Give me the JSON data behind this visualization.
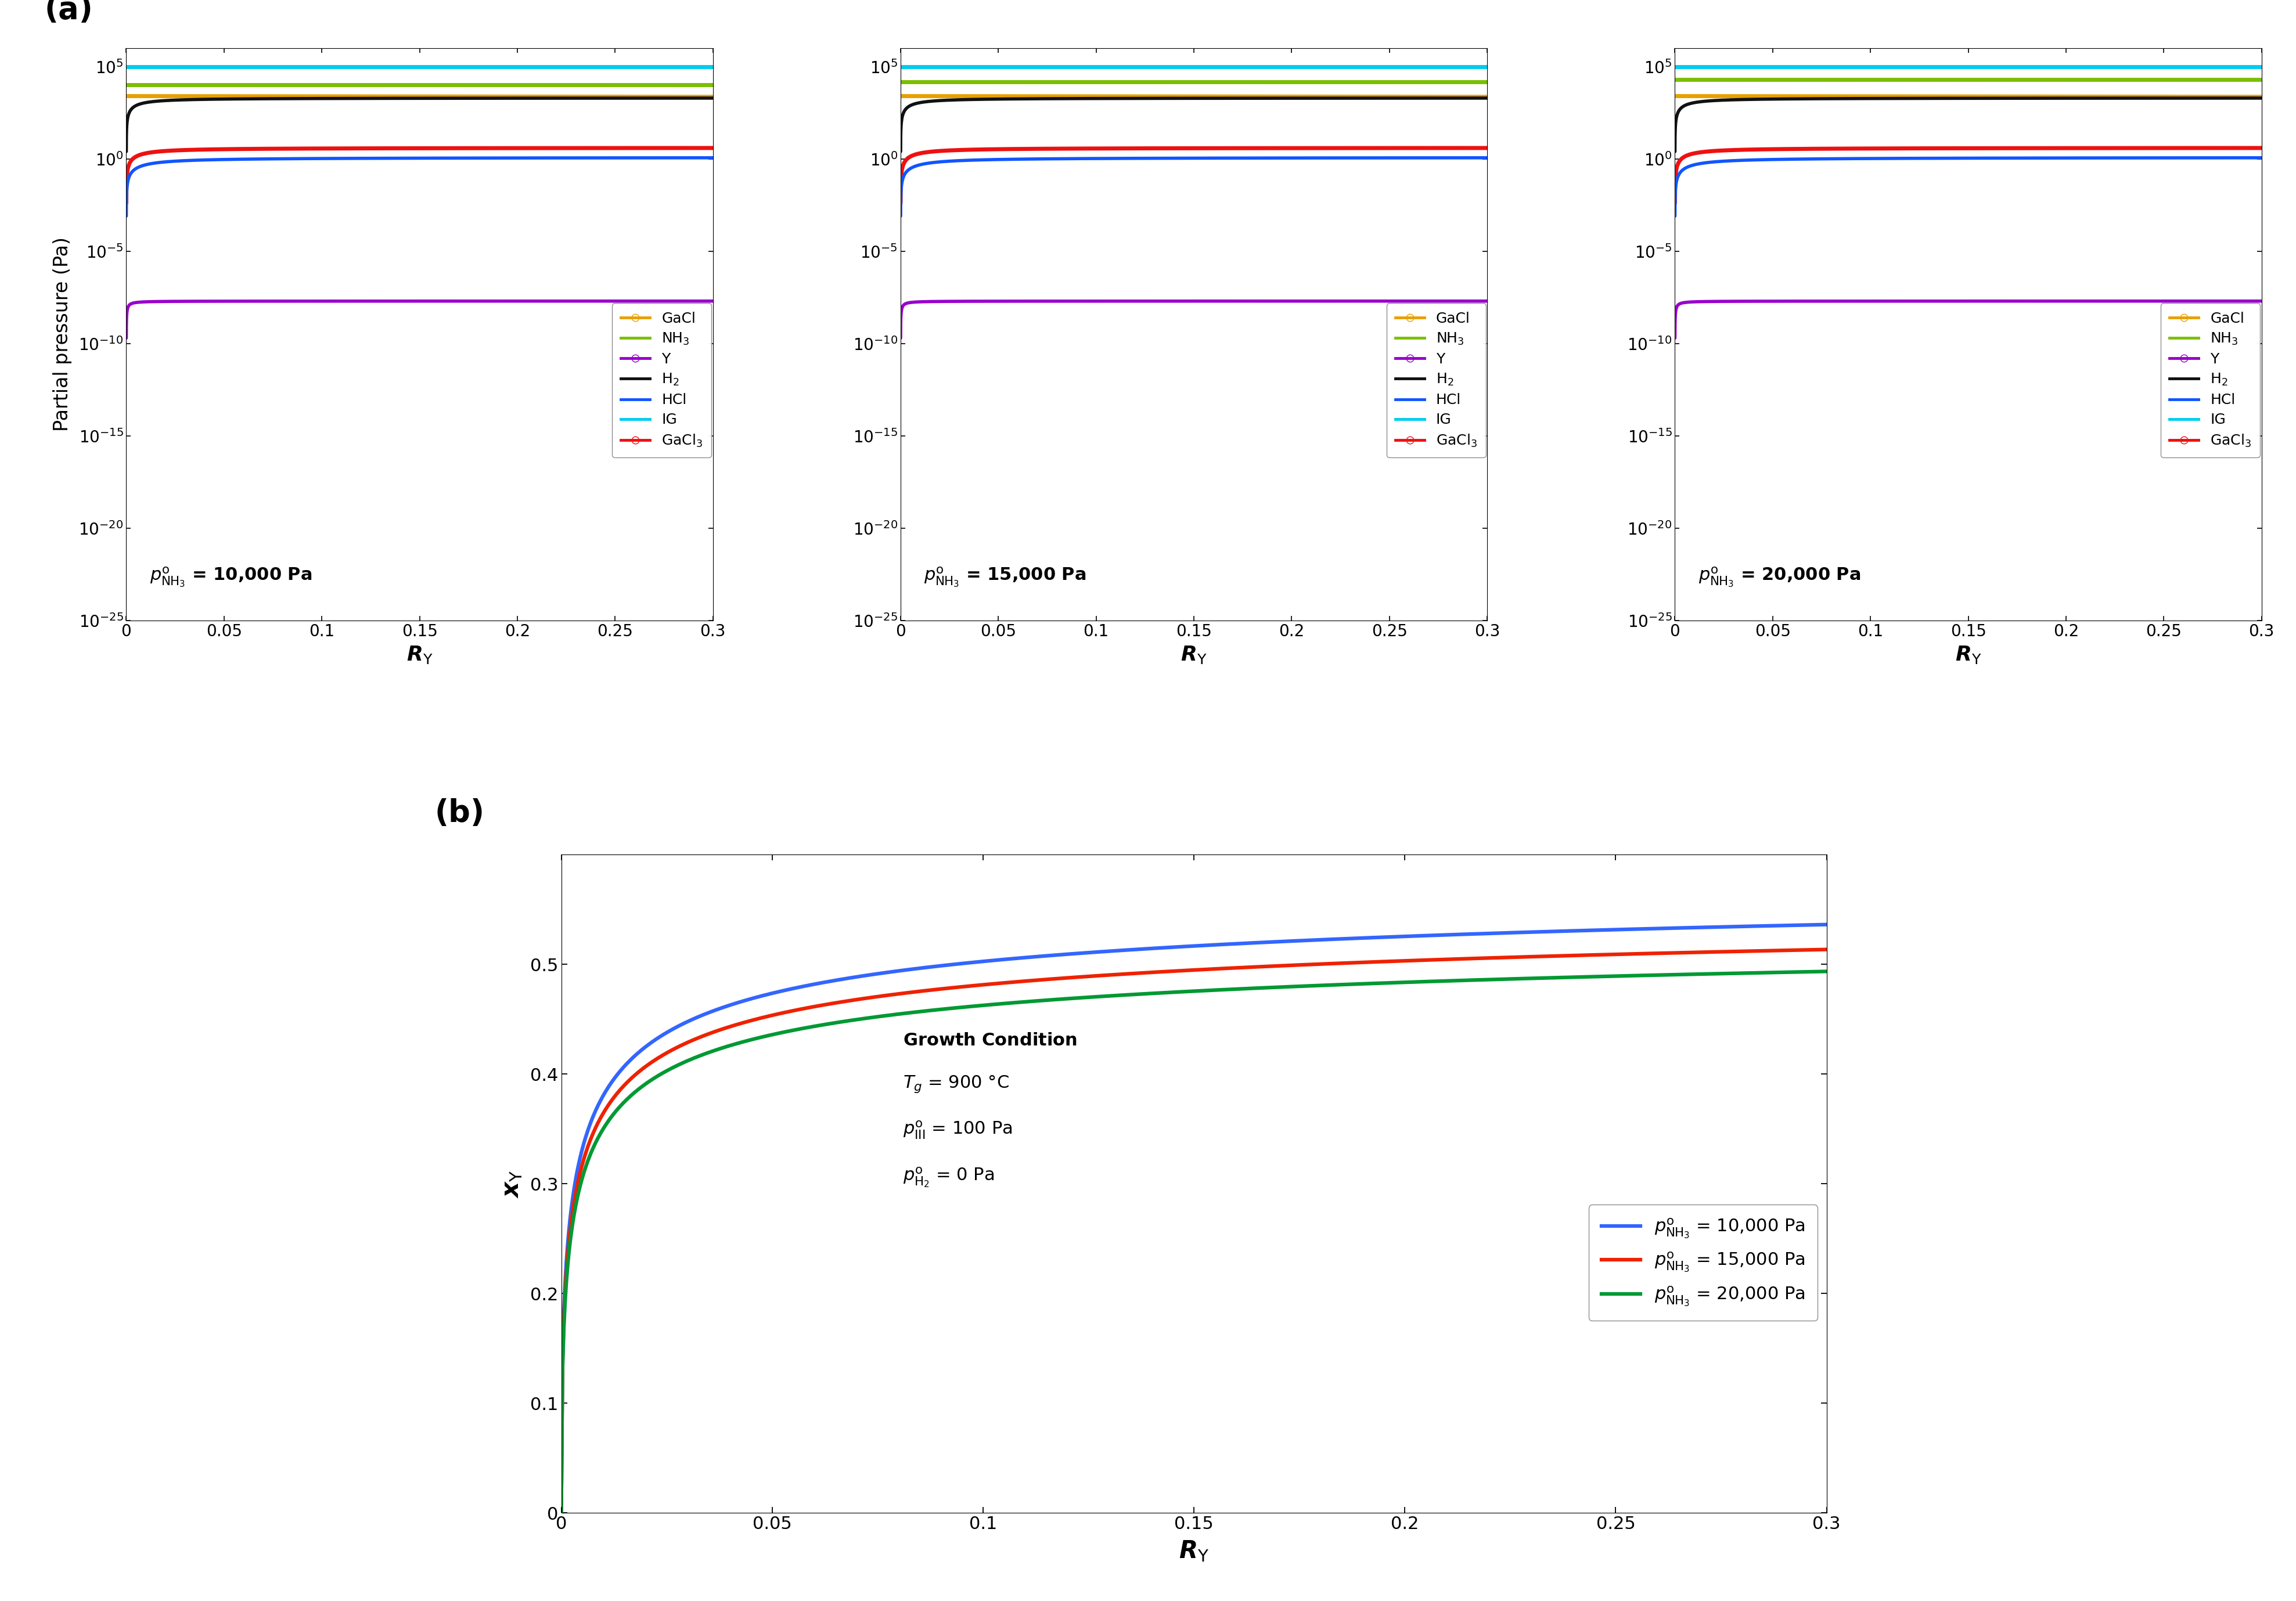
{
  "panel_a_ylabel": "Partial pressure (Pa)",
  "panel_a_xlim": [
    0,
    0.3
  ],
  "panel_b_xlabel": "R_Y",
  "panel_b_ylabel": "x_Y",
  "panel_b_xlim": [
    0,
    0.3
  ],
  "panel_b_ylim": [
    0,
    0.6
  ],
  "species_colors": {
    "GaCl": "#E8A000",
    "NH3": "#7BBF00",
    "Y": "#9900CC",
    "H2": "#111111",
    "HCl": "#1155FF",
    "IG": "#00CCEE",
    "GaCl3": "#EE1111"
  },
  "pNH3_values": [
    10000,
    15000,
    20000
  ],
  "pNH3_labels": [
    "10,000",
    "15,000",
    "20,000"
  ],
  "panel_b_colors": [
    "#3366FF",
    "#EE2200",
    "#009933"
  ],
  "panel_b_pNH3_labels": [
    "p^o_NH3 = 10,000 Pa",
    "p^o_NH3 = 15,000 Pa",
    "p^o_NH3 = 20,000 Pa"
  ],
  "bg_color": "#FFFFFF"
}
